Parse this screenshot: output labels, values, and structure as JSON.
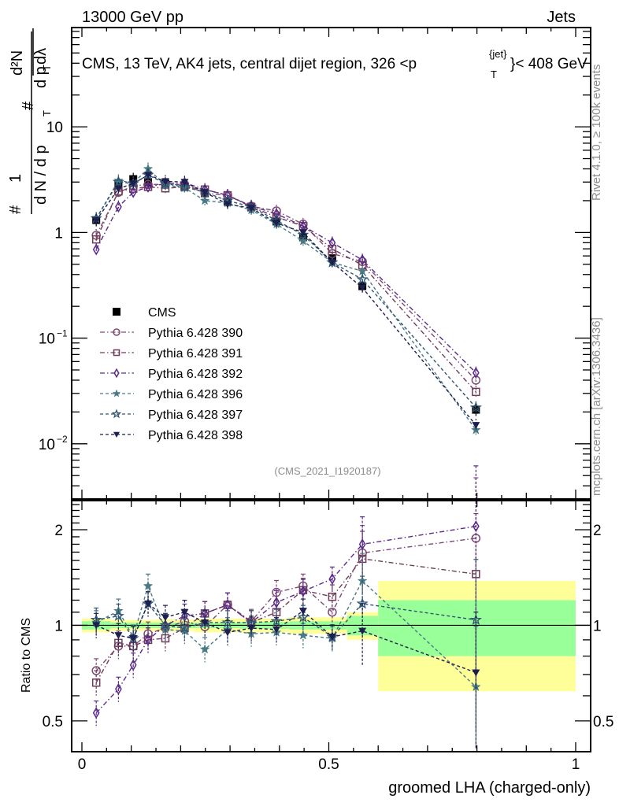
{
  "header": {
    "left_title": "13000 GeV pp",
    "right_title": "Jets"
  },
  "side_labels": {
    "rivet": "Rivet 4.1.0, ≥ 100k events",
    "mcplots": "mcplots.cern.ch [arXiv:1306.3436]"
  },
  "chart_data": [
    {
      "type": "line",
      "title": "CMS, 13 TeV, AK4 jets, central dijet region, 326 <p_T^{jet}< 408 GeV",
      "title_parts": {
        "main": "CMS, 13 TeV, AK4 jets, central dijet region, 326 <p",
        "sup": "{jet}",
        "sub": "T",
        "tail": "}< 408 GeV"
      },
      "ylabel_parts": {
        "num_hash": "#",
        "num_frac": "1",
        "den": "d N / d p",
        "den_sub": "T",
        "right_hash": "#",
        "top": "d²N",
        "bottom": "d p",
        "bottom_sub": "T",
        "bottom_tail": " dλ"
      },
      "yscale": "log",
      "ylim": [
        0.003,
        87
      ],
      "xlim": [
        -0.02,
        1.03
      ],
      "ytick_labels": [
        {
          "v": 10,
          "label": "10"
        },
        {
          "v": 1,
          "label": "1"
        },
        {
          "v": 0.1,
          "label": "10",
          "exp": "−1"
        },
        {
          "v": 0.01,
          "label": "10",
          "exp": "−2"
        }
      ],
      "annotation": "(CMS_2021_I1920187)",
      "legend_position": "middle-left",
      "x": [
        0.029,
        0.074,
        0.104,
        0.134,
        0.169,
        0.208,
        0.249,
        0.295,
        0.343,
        0.394,
        0.448,
        0.507,
        0.568,
        0.798
      ],
      "series": [
        {
          "name": "CMS",
          "marker": "square-filled",
          "color": "#000000",
          "line": "none",
          "values": [
            1.31,
            2.8,
            3.2,
            3.0,
            2.9,
            2.75,
            2.35,
            1.95,
            1.73,
            1.27,
            0.9,
            0.57,
            0.31,
            0.021
          ]
        },
        {
          "name": "Pythia 6.428 390",
          "marker": "circle-open",
          "color": "#7d4a73",
          "line": "dashdot",
          "values": [
            0.94,
            2.4,
            2.75,
            2.85,
            2.85,
            2.85,
            2.35,
            2.25,
            1.77,
            1.6,
            1.2,
            0.63,
            0.53,
            0.04
          ]
        },
        {
          "name": "Pythia 6.428 391",
          "marker": "square-open",
          "color": "#6e3b59",
          "line": "dashdot",
          "values": [
            0.86,
            2.45,
            2.6,
            2.7,
            2.62,
            2.7,
            2.55,
            2.25,
            1.75,
            1.4,
            1.15,
            0.7,
            0.49,
            0.031
          ]
        },
        {
          "name": "Pythia 6.428 392",
          "marker": "diamond-open",
          "color": "#5a2a8a",
          "line": "dashdot",
          "values": [
            0.69,
            1.75,
            2.4,
            2.7,
            2.9,
            2.95,
            2.55,
            2.25,
            1.78,
            1.5,
            1.15,
            0.8,
            0.55,
            0.047
          ]
        },
        {
          "name": "Pythia 6.428 396",
          "marker": "star-filled",
          "color": "#4a7a85",
          "line": "dashed",
          "values": [
            1.35,
            3.1,
            2.95,
            4.0,
            2.8,
            2.65,
            2.0,
            1.9,
            1.63,
            1.2,
            0.83,
            0.52,
            0.43,
            0.0135
          ]
        },
        {
          "name": "Pythia 6.428 397",
          "marker": "star-open",
          "color": "#2f5570",
          "line": "dashed",
          "values": [
            1.36,
            3.0,
            2.9,
            3.5,
            2.9,
            2.7,
            2.4,
            2.0,
            1.75,
            1.3,
            0.95,
            0.52,
            0.36,
            0.022
          ]
        },
        {
          "name": "Pythia 6.428 398",
          "marker": "triangle-down-filled",
          "color": "#1c1f4f",
          "line": "dashed",
          "values": [
            1.3,
            2.6,
            2.9,
            3.5,
            3.05,
            3.0,
            2.4,
            1.85,
            1.7,
            1.23,
            1.0,
            0.52,
            0.3,
            0.015
          ]
        }
      ]
    },
    {
      "type": "line",
      "ylabel": "Ratio to CMS",
      "xlabel": "groomed LHA (charged-only)",
      "yscale": "log",
      "ylim": [
        0.4,
        2.47
      ],
      "xlim": [
        -0.02,
        1.03
      ],
      "ytick_labels": [
        {
          "v": 2,
          "label": "2"
        },
        {
          "v": 1,
          "label": "1"
        },
        {
          "v": 0.5,
          "label": "0.5"
        }
      ],
      "xtick_labels": [
        {
          "v": 0,
          "label": "0"
        },
        {
          "v": 0.5,
          "label": "0.5"
        },
        {
          "v": 1,
          "label": "1"
        }
      ],
      "bin_edges": [
        0.0,
        0.058,
        0.089,
        0.119,
        0.149,
        0.189,
        0.228,
        0.27,
        0.32,
        0.367,
        0.42,
        0.477,
        0.537,
        0.6,
        1.0
      ],
      "band_stat": [
        0.03,
        0.02,
        0.02,
        0.02,
        0.02,
        0.02,
        0.02,
        0.02,
        0.025,
        0.025,
        0.03,
        0.03,
        0.07,
        0.2
      ],
      "band_total": [
        0.05,
        0.04,
        0.04,
        0.04,
        0.045,
        0.04,
        0.05,
        0.05,
        0.05,
        0.05,
        0.06,
        0.06,
        0.1,
        0.38
      ],
      "band_colors": {
        "total": "#ffff99",
        "stat": "#99ff99"
      },
      "x": [
        0.029,
        0.074,
        0.104,
        0.134,
        0.169,
        0.208,
        0.249,
        0.295,
        0.343,
        0.394,
        0.448,
        0.507,
        0.568,
        0.798
      ],
      "series": [
        {
          "name": "Pythia 6.428 390",
          "values": [
            0.72,
            0.86,
            0.86,
            0.94,
            0.98,
            1.03,
            0.99,
            1.16,
            1.03,
            1.27,
            1.33,
            1.1,
            1.69,
            1.88
          ]
        },
        {
          "name": "Pythia 6.428 391",
          "values": [
            0.66,
            0.88,
            0.86,
            0.9,
            0.91,
            0.98,
            1.09,
            1.16,
            1.02,
            1.1,
            1.29,
            1.23,
            1.62,
            1.45
          ]
        },
        {
          "name": "Pythia 6.428 392",
          "values": [
            0.53,
            0.63,
            0.75,
            0.9,
            1.0,
            1.07,
            1.09,
            1.16,
            1.02,
            1.18,
            1.28,
            1.4,
            1.8,
            2.05
          ]
        },
        {
          "name": "Pythia 6.428 396",
          "values": [
            1.02,
            1.11,
            0.92,
            1.33,
            0.97,
            0.96,
            0.84,
            0.97,
            0.94,
            0.95,
            0.93,
            0.91,
            1.38,
            0.64
          ]
        },
        {
          "name": "Pythia 6.428 397",
          "values": [
            1.04,
            1.07,
            0.91,
            1.17,
            1.0,
            0.98,
            1.02,
            1.02,
            1.02,
            1.03,
            1.06,
            0.92,
            1.17,
            1.04
          ]
        },
        {
          "name": "Pythia 6.428 398",
          "values": [
            1.0,
            0.93,
            0.91,
            1.17,
            1.06,
            1.1,
            1.02,
            0.95,
            0.98,
            0.97,
            1.11,
            0.92,
            0.96,
            0.71
          ]
        }
      ]
    }
  ]
}
